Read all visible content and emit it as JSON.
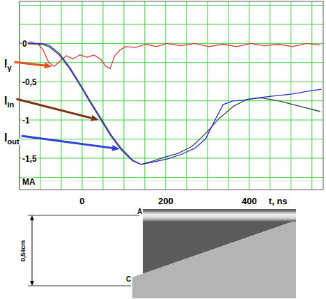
{
  "chart_data": {
    "type": "line",
    "x_label": "t, ns",
    "y_label": "MA",
    "xlim": [
      -150,
      577
    ],
    "ylim": [
      -1.91,
      0.55
    ],
    "xticks": [
      0,
      200,
      400
    ],
    "yticks": [
      0,
      {
        "value": -0.5,
        "label": "-0,5"
      },
      -1,
      {
        "value": -1.5,
        "label": "-1,5"
      }
    ],
    "grid": true,
    "series": [
      {
        "name": "Iγ",
        "color": "#d03a3a",
        "x": [
          -147,
          -122,
          -105,
          -93,
          -80,
          -67,
          -55,
          -38,
          -22,
          -5,
          12,
          28,
          45,
          57,
          67,
          78,
          90,
          103,
          128,
          153,
          178,
          203,
          237,
          270,
          303,
          337,
          370,
          403,
          437,
          470,
          503,
          537,
          570
        ],
        "values": [
          0,
          0.02,
          -0.01,
          -0.09,
          -0.25,
          -0.3,
          -0.24,
          -0.16,
          -0.2,
          -0.15,
          -0.18,
          -0.15,
          -0.21,
          -0.3,
          -0.33,
          -0.16,
          -0.09,
          -0.04,
          -0.05,
          -0.01,
          -0.04,
          0,
          -0.03,
          0,
          -0.04,
          -0.01,
          -0.04,
          0,
          -0.03,
          -0.01,
          -0.04,
          0,
          -0.02
        ]
      },
      {
        "name": "Iin",
        "color": "#2e4a3a",
        "x": [
          -147,
          -97,
          -80,
          -55,
          -30,
          -5,
          20,
          45,
          70,
          95,
          120,
          140,
          162,
          195,
          228,
          262,
          295,
          328,
          362,
          395,
          428,
          470,
          520,
          570
        ],
        "values": [
          0,
          -0.01,
          -0.04,
          -0.15,
          -0.33,
          -0.55,
          -0.78,
          -1.0,
          -1.22,
          -1.4,
          -1.53,
          -1.58,
          -1.55,
          -1.49,
          -1.44,
          -1.35,
          -1.18,
          -0.98,
          -0.82,
          -0.73,
          -0.71,
          -0.75,
          -0.82,
          -0.89
        ]
      },
      {
        "name": "Iout",
        "color": "#2a2ad0",
        "x": [
          -147,
          -97,
          -80,
          -55,
          -30,
          -5,
          20,
          45,
          70,
          95,
          120,
          140,
          170,
          203,
          237,
          270,
          295,
          320,
          337,
          362,
          387,
          420,
          453,
          503,
          545,
          573
        ],
        "values": [
          0,
          0,
          -0.02,
          -0.13,
          -0.31,
          -0.53,
          -0.76,
          -0.98,
          -1.2,
          -1.38,
          -1.52,
          -1.58,
          -1.55,
          -1.51,
          -1.45,
          -1.37,
          -1.25,
          -0.98,
          -0.8,
          -0.75,
          -0.74,
          -0.71,
          -0.69,
          -0.66,
          -0.62,
          -0.6
        ]
      }
    ]
  },
  "streak_image": {
    "anode_label": "A",
    "cathode_label": "C",
    "gap_label": "0,54cm"
  }
}
